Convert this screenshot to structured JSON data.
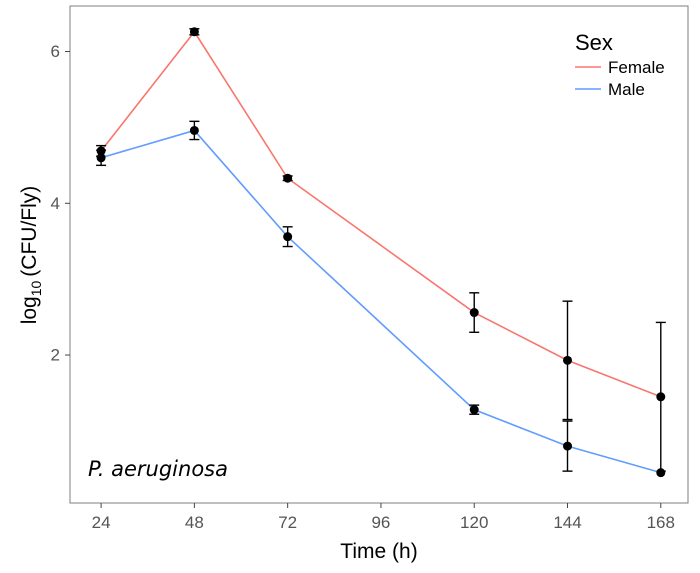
{
  "chart_data": {
    "type": "line",
    "title": "",
    "xlabel": "Time (h)",
    "ylabel": "log10 (CFU/Fly)",
    "ylabel_prefix": "log",
    "ylabel_subscript": "10",
    "ylabel_rest": "(CFU/Fly)",
    "x": [
      24,
      48,
      72,
      96,
      120,
      144,
      168
    ],
    "x_ticks": [
      "24",
      "48",
      "72",
      "96",
      "120",
      "144",
      "168"
    ],
    "y_ticks": [
      "2",
      "4",
      "6"
    ],
    "xlim": [
      16,
      175
    ],
    "ylim": [
      0.05,
      6.6
    ],
    "grid": false,
    "annotation": "P. aeruginosa",
    "legend": {
      "title": "Sex",
      "position": "top-right"
    },
    "series": [
      {
        "name": "Female",
        "color": "#F8766D",
        "points": [
          {
            "x": 24,
            "y": 4.69,
            "err": 0.07
          },
          {
            "x": 48,
            "y": 6.26,
            "err": 0.04
          },
          {
            "x": 72,
            "y": 4.33,
            "err": 0.03
          },
          {
            "x": 120,
            "y": 2.56,
            "err": 0.26
          },
          {
            "x": 144,
            "y": 1.93,
            "err": 0.78
          },
          {
            "x": 168,
            "y": 1.45,
            "err": 0.98
          }
        ]
      },
      {
        "name": "Male",
        "color": "#619CFF",
        "points": [
          {
            "x": 24,
            "y": 4.6,
            "err": 0.1
          },
          {
            "x": 48,
            "y": 4.96,
            "err": 0.12
          },
          {
            "x": 72,
            "y": 3.56,
            "err": 0.13
          },
          {
            "x": 120,
            "y": 1.28,
            "err": 0.06
          },
          {
            "x": 144,
            "y": 0.8,
            "err": 0.33
          },
          {
            "x": 168,
            "y": 0.45,
            "err": 0.0
          }
        ]
      }
    ]
  }
}
